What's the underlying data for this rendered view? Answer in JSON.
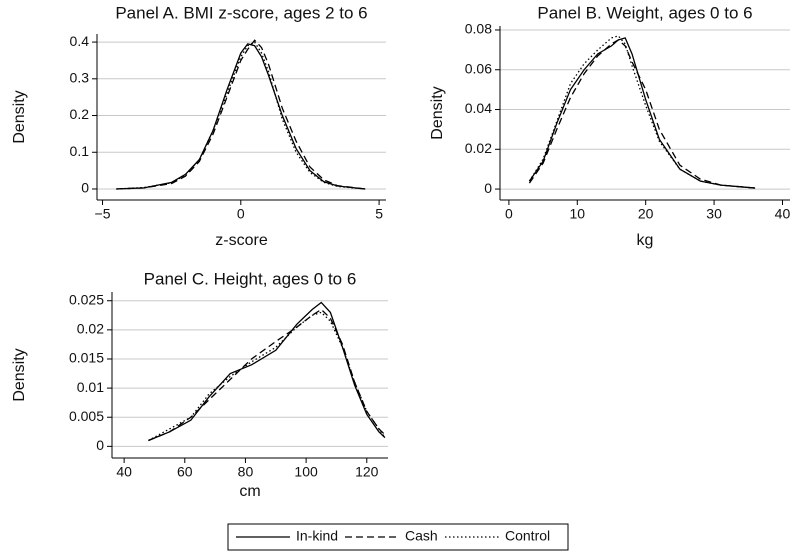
{
  "chart_data": [
    {
      "type": "line",
      "title": "Panel A. BMI z-score, ages 2 to 6",
      "xlabel": "z-score",
      "ylabel": "Density",
      "x": [
        -4.5,
        -3.5,
        -2.5,
        -2,
        -1.5,
        -1,
        -0.5,
        0,
        0.25,
        0.5,
        0.75,
        1,
        1.5,
        2,
        2.5,
        3,
        3.5,
        4.5
      ],
      "series": [
        {
          "name": "In-kind",
          "color": "#000000",
          "line_style": "solid",
          "values": [
            0,
            0.003,
            0.018,
            0.04,
            0.08,
            0.16,
            0.27,
            0.37,
            0.395,
            0.39,
            0.36,
            0.31,
            0.2,
            0.11,
            0.05,
            0.02,
            0.008,
            0
          ]
        },
        {
          "name": "Cash",
          "color": "#000000",
          "line_style": "dashed",
          "values": [
            0,
            0.003,
            0.015,
            0.035,
            0.075,
            0.15,
            0.25,
            0.35,
            0.38,
            0.405,
            0.385,
            0.34,
            0.22,
            0.13,
            0.06,
            0.025,
            0.009,
            0
          ]
        },
        {
          "name": "Control",
          "color": "#000000",
          "line_style": "dotted",
          "values": [
            0,
            0.004,
            0.017,
            0.038,
            0.08,
            0.16,
            0.26,
            0.36,
            0.39,
            0.4,
            0.37,
            0.32,
            0.19,
            0.1,
            0.045,
            0.018,
            0.007,
            0
          ]
        }
      ],
      "xlim": [
        -5.2,
        5.25
      ],
      "xticks": [
        {
          "value": -5,
          "label": "−5"
        },
        0,
        5
      ],
      "ylim": [
        -0.03,
        0.422
      ],
      "yticks": [
        0,
        0.1,
        0.2,
        0.3,
        0.4
      ],
      "grid": true
    },
    {
      "type": "line",
      "title": "Panel B. Weight, ages 0 to 6",
      "xlabel": "kg",
      "ylabel": "Density",
      "x": [
        3,
        5,
        7,
        9,
        11,
        13,
        15,
        16,
        17,
        18,
        20,
        22,
        25,
        28,
        31,
        36
      ],
      "series": [
        {
          "name": "In-kind",
          "color": "#000000",
          "line_style": "solid",
          "values": [
            0.004,
            0.014,
            0.033,
            0.05,
            0.06,
            0.068,
            0.072,
            0.075,
            0.076,
            0.068,
            0.045,
            0.025,
            0.01,
            0.004,
            0.002,
            0.0005
          ]
        },
        {
          "name": "Cash",
          "color": "#000000",
          "line_style": "dashed",
          "values": [
            0.003,
            0.013,
            0.03,
            0.046,
            0.058,
            0.067,
            0.073,
            0.075,
            0.072,
            0.064,
            0.05,
            0.03,
            0.012,
            0.005,
            0.002,
            0.0005
          ]
        },
        {
          "name": "Control",
          "color": "#000000",
          "line_style": "dotted",
          "values": [
            0.004,
            0.015,
            0.034,
            0.053,
            0.063,
            0.07,
            0.076,
            0.077,
            0.073,
            0.062,
            0.042,
            0.024,
            0.01,
            0.004,
            0.002,
            0.0005
          ]
        }
      ],
      "xlim": [
        -1.3,
        41.1
      ],
      "xticks": [
        0,
        10,
        20,
        30,
        40
      ],
      "ylim": [
        -0.0055,
        0.082
      ],
      "yticks": [
        0,
        0.02,
        0.04,
        0.06,
        0.08
      ],
      "grid": true
    },
    {
      "type": "line",
      "title": "Panel C. Height, ages 0 to 6",
      "xlabel": "cm",
      "ylabel": "Density",
      "x": [
        48,
        55,
        62,
        68,
        75,
        82,
        90,
        97,
        102,
        105,
        108,
        112,
        116,
        120,
        124,
        126
      ],
      "series": [
        {
          "name": "In-kind",
          "color": "#000000",
          "line_style": "solid",
          "values": [
            0.001,
            0.0025,
            0.0045,
            0.0085,
            0.0125,
            0.014,
            0.0165,
            0.021,
            0.0235,
            0.0247,
            0.023,
            0.017,
            0.0105,
            0.0055,
            0.0025,
            0.0015
          ]
        },
        {
          "name": "Cash",
          "color": "#000000",
          "line_style": "dashed",
          "values": [
            0.001,
            0.0025,
            0.005,
            0.008,
            0.0115,
            0.015,
            0.018,
            0.0205,
            0.0225,
            0.0235,
            0.022,
            0.0175,
            0.011,
            0.006,
            0.003,
            0.002
          ]
        },
        {
          "name": "Control",
          "color": "#000000",
          "line_style": "dotted",
          "values": [
            0.001,
            0.003,
            0.005,
            0.009,
            0.012,
            0.0145,
            0.017,
            0.0205,
            0.0225,
            0.023,
            0.0215,
            0.017,
            0.011,
            0.006,
            0.003,
            0.0015
          ]
        }
      ],
      "xlim": [
        36,
        127
      ],
      "xticks": [
        40,
        60,
        80,
        100,
        120
      ],
      "ylim": [
        -0.002,
        0.0265
      ],
      "yticks": [
        0,
        0.005,
        0.01,
        0.015,
        0.02,
        0.025
      ],
      "grid": true
    }
  ]
}
